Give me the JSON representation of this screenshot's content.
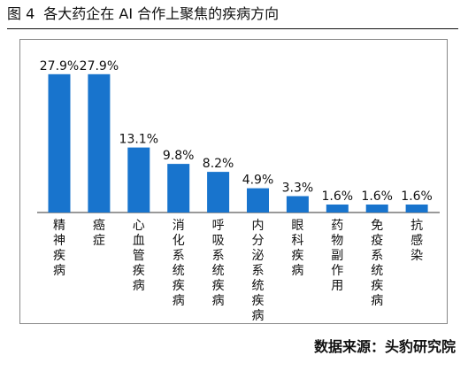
{
  "figure": {
    "number": "图 4",
    "title": "各大药企在 AI 合作上聚焦的疾病方向"
  },
  "source": "数据来源：头豹研究院",
  "colors": {
    "bar": "#1874CD",
    "text": "#111111",
    "axis": "#333333",
    "frame": "#888888"
  },
  "chart_data": {
    "type": "bar",
    "title": "",
    "xlabel": "",
    "ylabel": "",
    "ylim": [
      0,
      30
    ],
    "grid": false,
    "legend": "none",
    "categories": [
      "精神疾病",
      "癌症",
      "心血管疾病",
      "消化系统疾病",
      "呼吸系统疾病",
      "内分泌系统疾病",
      "眼科疾病",
      "药物副作用",
      "免疫系统疾病",
      "抗感染"
    ],
    "values": [
      27.9,
      27.9,
      13.1,
      9.8,
      8.2,
      4.9,
      3.3,
      1.6,
      1.6,
      1.6
    ],
    "value_labels": [
      "27.9%",
      "27.9%",
      "13.1%",
      "9.8%",
      "8.2%",
      "4.9%",
      "3.3%",
      "1.6%",
      "1.6%",
      "1.6%"
    ]
  }
}
